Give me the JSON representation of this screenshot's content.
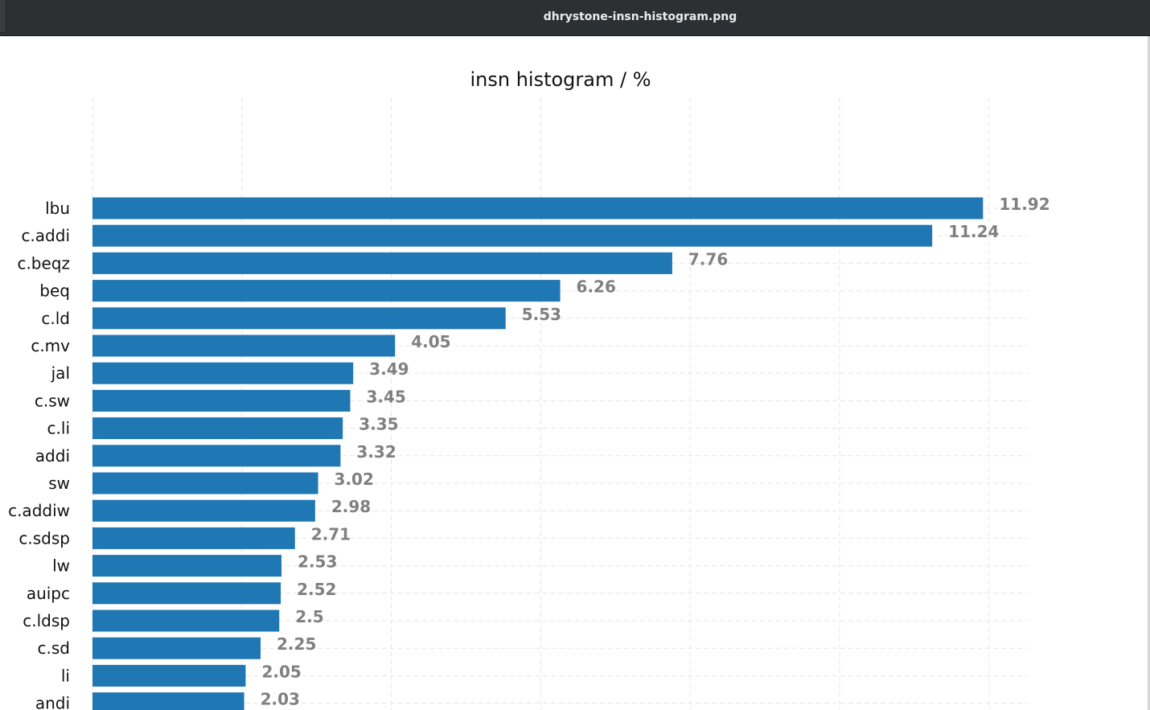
{
  "window": {
    "title": "dhrystone-insn-histogram.png"
  },
  "colors": {
    "bar": "#1f77b4",
    "value_label": "#808080",
    "grid": "#e6e6e6"
  },
  "chart_data": {
    "type": "bar",
    "orientation": "horizontal",
    "title": "insn histogram / %",
    "xlabel": "",
    "ylabel": "",
    "grid": true,
    "xlim": [
      0,
      12.5
    ],
    "categories": [
      "lbu",
      "c.addi",
      "c.beqz",
      "beq",
      "c.ld",
      "c.mv",
      "jal",
      "c.sw",
      "c.li",
      "addi",
      "sw",
      "c.addiw",
      "c.sdsp",
      "lw",
      "auipc",
      "c.ldsp",
      "c.sd",
      "li",
      "andi"
    ],
    "values": [
      11.92,
      11.24,
      7.76,
      6.26,
      5.53,
      4.05,
      3.49,
      3.45,
      3.35,
      3.32,
      3.02,
      2.98,
      2.71,
      2.53,
      2.52,
      2.5,
      2.25,
      2.05,
      2.03
    ],
    "value_labels": [
      "11.92",
      "11.24",
      "7.76",
      "6.26",
      "5.53",
      "4.05",
      "3.49",
      "3.45",
      "3.35",
      "3.32",
      "3.02",
      "2.98",
      "2.71",
      "2.53",
      "2.52",
      "2.5",
      "2.25",
      "2.05",
      "2.03"
    ]
  }
}
